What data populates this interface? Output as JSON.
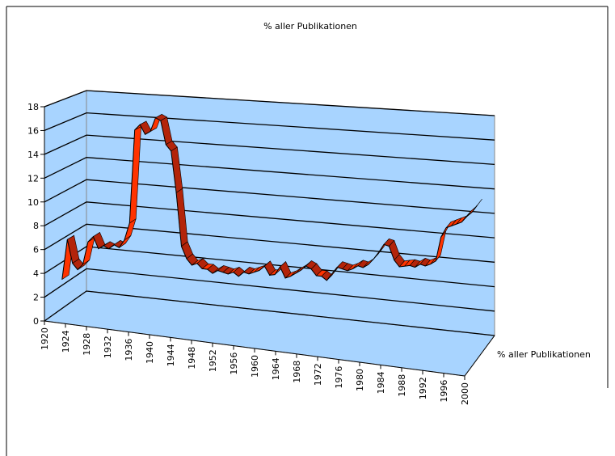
{
  "chart_data": {
    "type": "line3d",
    "title": "% aller Publikationen",
    "depth_label": "% aller Publikationen",
    "categories": [
      "1920",
      null,
      null,
      null,
      "1924",
      null,
      null,
      null,
      "1928",
      null,
      null,
      null,
      "1932",
      null,
      null,
      null,
      "1936",
      null,
      null,
      null,
      "1940",
      null,
      null,
      null,
      "1944",
      null,
      null,
      null,
      "1948",
      null,
      null,
      null,
      "1952",
      null,
      null,
      null,
      "1956",
      null,
      null,
      null,
      "1960",
      null,
      null,
      null,
      "1964",
      null,
      null,
      null,
      "1968",
      null,
      null,
      null,
      "1972",
      null,
      null,
      null,
      "1976",
      null,
      null,
      null,
      "1980",
      null,
      null,
      null,
      "1984",
      null,
      null,
      null,
      "1988",
      null,
      null,
      null,
      "1992",
      null,
      null,
      null,
      "1996",
      null,
      null,
      null,
      "2000"
    ],
    "series": [
      {
        "name": "% aller Publikationen",
        "color": "#ff3300",
        "values": [
          2.5,
          6,
          4,
          3.5,
          4,
          6,
          6.5,
          5.5,
          5.8,
          5.6,
          6,
          5.8,
          6.5,
          8,
          16,
          16.5,
          15.7,
          16,
          17.2,
          17,
          15,
          14.5,
          11,
          6.5,
          5.5,
          5,
          5.2,
          4.8,
          4.8,
          4.5,
          4.8,
          4.7,
          4.6,
          4.8,
          4.5,
          4.9,
          4.8,
          5,
          5.2,
          5.6,
          4.9,
          5,
          5.7,
          4.8,
          5,
          5.3,
          5.6,
          6,
          5.8,
          5.3,
          5.3,
          5,
          5.6,
          6.2,
          6.1,
          6,
          6.2,
          6.5,
          6.4,
          6.7,
          7.2,
          7.8,
          8.5,
          8.4,
          7.3,
          6.8,
          6.9,
          7,
          6.9,
          7.2,
          7.1,
          7.3,
          7.6,
          9.6,
          10.4,
          10.6,
          10.8,
          11,
          11.5,
          11.9,
          12.5
        ]
      }
    ],
    "ylim": [
      0,
      18
    ],
    "yticks": [
      0,
      2,
      4,
      6,
      8,
      10,
      12,
      14,
      16,
      18
    ],
    "grid": true,
    "wall_color": "#a8d4ff"
  }
}
